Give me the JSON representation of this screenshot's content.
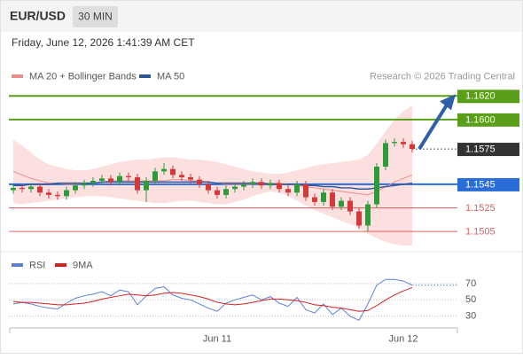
{
  "header": {
    "symbol": "EUR/USD",
    "interval": "30 MIN",
    "timestamp": "Friday, June 12, 2026 1:41:39 AM CET"
  },
  "chart_data": [
    {
      "type": "candlestick",
      "source": "Research © 2026 Trading Central",
      "up_color": "#2e9a3a",
      "down_color": "#d23a3a",
      "open": [
        1.154,
        1.1542,
        1.1541,
        1.1543,
        1.1538,
        1.1536,
        1.1535,
        1.154,
        1.1544,
        1.1546,
        1.1548,
        1.155,
        1.1547,
        1.1552,
        1.1551,
        1.154,
        1.1548,
        1.1556,
        1.1558,
        1.1553,
        1.1551,
        1.1549,
        1.1545,
        1.154,
        1.1536,
        1.1541,
        1.1543,
        1.1545,
        1.1547,
        1.1544,
        1.1546,
        1.1541,
        1.1538,
        1.1545,
        1.1534,
        1.153,
        1.1538,
        1.1526,
        1.1531,
        1.1522,
        1.151,
        1.1528,
        1.156,
        1.158,
        1.1581,
        1.1579
      ],
      "high": [
        1.1545,
        1.1545,
        1.1546,
        1.1546,
        1.1541,
        1.1539,
        1.1543,
        1.1547,
        1.1549,
        1.1551,
        1.1553,
        1.1553,
        1.1555,
        1.1555,
        1.1554,
        1.1551,
        1.1559,
        1.1563,
        1.1561,
        1.1556,
        1.1554,
        1.1552,
        1.1548,
        1.1543,
        1.1544,
        1.1546,
        1.1548,
        1.155,
        1.155,
        1.1549,
        1.1549,
        1.1544,
        1.1548,
        1.1548,
        1.1537,
        1.1541,
        1.1541,
        1.1534,
        1.1534,
        1.1525,
        1.1531,
        1.1563,
        1.1583,
        1.1584,
        1.1584,
        1.1582
      ],
      "low": [
        1.1537,
        1.1538,
        1.1538,
        1.1535,
        1.1533,
        1.1532,
        1.1532,
        1.1537,
        1.1541,
        1.1543,
        1.1545,
        1.1544,
        1.1544,
        1.1548,
        1.1537,
        1.153,
        1.1545,
        1.1553,
        1.155,
        1.1548,
        1.1546,
        1.1542,
        1.1537,
        1.1533,
        1.1533,
        1.1538,
        1.154,
        1.1542,
        1.1541,
        1.1541,
        1.1538,
        1.1535,
        1.1535,
        1.1531,
        1.1527,
        1.1527,
        1.1523,
        1.1523,
        1.1519,
        1.1507,
        1.1505,
        1.1525,
        1.1557,
        1.1577,
        1.1576,
        1.1572
      ],
      "close": [
        1.1542,
        1.1541,
        1.1543,
        1.1538,
        1.1536,
        1.1535,
        1.154,
        1.1544,
        1.1546,
        1.1548,
        1.155,
        1.1547,
        1.1552,
        1.1551,
        1.154,
        1.1548,
        1.1556,
        1.1558,
        1.1553,
        1.1551,
        1.1549,
        1.1545,
        1.154,
        1.1536,
        1.1541,
        1.1543,
        1.1545,
        1.1547,
        1.1544,
        1.1546,
        1.1541,
        1.1538,
        1.1545,
        1.1534,
        1.153,
        1.1538,
        1.1526,
        1.1531,
        1.1522,
        1.151,
        1.1528,
        1.156,
        1.158,
        1.1581,
        1.1579,
        1.1575
      ],
      "series": [
        {
          "name": "MA 20 + Bollinger Bands",
          "color": "#ef8a8a",
          "band_color": "#fbdada",
          "values": [
            1.1556,
            1.1553,
            1.155,
            1.1548,
            1.1546,
            1.1546,
            1.1545,
            1.1545,
            1.1546,
            1.1546,
            1.1547,
            1.1548,
            1.1548,
            1.1548,
            1.1548,
            1.1548,
            1.1548,
            1.1548,
            1.1549,
            1.1549,
            1.1548,
            1.1548,
            1.1547,
            1.1546,
            1.1545,
            1.1545,
            1.1545,
            1.1545,
            1.1546,
            1.1546,
            1.1546,
            1.1545,
            1.1544,
            1.1543,
            1.1542,
            1.1541,
            1.154,
            1.1539,
            1.1538,
            1.1537,
            1.1536,
            1.1539,
            1.1543,
            1.1547,
            1.155,
            1.1553
          ],
          "upper": [
            1.1583,
            1.1578,
            1.1572,
            1.1566,
            1.1562,
            1.156,
            1.1558,
            1.1557,
            1.1557,
            1.1558,
            1.156,
            1.1562,
            1.1564,
            1.1565,
            1.1566,
            1.1566,
            1.1567,
            1.1568,
            1.1568,
            1.1567,
            1.1566,
            1.1566,
            1.1565,
            1.1564,
            1.1562,
            1.156,
            1.1558,
            1.1556,
            1.1555,
            1.1554,
            1.1554,
            1.1555,
            1.1557,
            1.1559,
            1.1561,
            1.1562,
            1.1563,
            1.1564,
            1.1565,
            1.1566,
            1.157,
            1.158,
            1.159,
            1.16,
            1.1607,
            1.1612
          ],
          "lower": [
            1.1529,
            1.1528,
            1.1529,
            1.153,
            1.1531,
            1.1532,
            1.1533,
            1.1534,
            1.1535,
            1.1535,
            1.1535,
            1.1534,
            1.1533,
            1.1532,
            1.1531,
            1.153,
            1.1529,
            1.1529,
            1.153,
            1.1531,
            1.1531,
            1.153,
            1.1529,
            1.1528,
            1.1528,
            1.153,
            1.1532,
            1.1535,
            1.1537,
            1.1539,
            1.1538,
            1.1535,
            1.1531,
            1.1527,
            1.1523,
            1.152,
            1.1517,
            1.1514,
            1.1511,
            1.1508,
            1.1503,
            1.1499,
            1.1496,
            1.1494,
            1.1493,
            1.1493
          ]
        },
        {
          "name": "MA 50",
          "color": "#2f5597",
          "values": [
            1.1544,
            1.1544,
            1.1545,
            1.1545,
            1.1545,
            1.1546,
            1.1546,
            1.1546,
            1.1546,
            1.1546,
            1.1547,
            1.1547,
            1.1547,
            1.1547,
            1.1547,
            1.1547,
            1.1547,
            1.1547,
            1.1547,
            1.1547,
            1.1547,
            1.1547,
            1.1547,
            1.1546,
            1.1546,
            1.1546,
            1.1546,
            1.1546,
            1.1546,
            1.1545,
            1.1545,
            1.1545,
            1.1545,
            1.1544,
            1.1544,
            1.1543,
            1.1543,
            1.1542,
            1.1542,
            1.1541,
            1.1541,
            1.1542,
            1.1543,
            1.1544,
            1.1545,
            1.1546
          ]
        }
      ],
      "ylim": [
        1.149,
        1.163
      ],
      "levels": [
        {
          "value": 1.162,
          "label": "1.1620",
          "color": "#5a9e1a",
          "style": "box"
        },
        {
          "value": 1.16,
          "label": "1.1600",
          "color": "#5a9e1a",
          "style": "box"
        },
        {
          "value": 1.1575,
          "color": "#333333",
          "style": "current"
        },
        {
          "value": 1.1545,
          "color": "#2a6dd6",
          "style": "box"
        },
        {
          "value": 1.1525,
          "color": "#e06060",
          "style": "text"
        },
        {
          "value": 1.1505,
          "color": "#e06060",
          "style": "text"
        }
      ]
    },
    {
      "type": "line",
      "categories": [
        null,
        null,
        null,
        null,
        null,
        null,
        null,
        null,
        null,
        null,
        null,
        null,
        null,
        null,
        null,
        null,
        null,
        null,
        null,
        null,
        null,
        null,
        null,
        "Jun 11",
        null,
        null,
        null,
        null,
        null,
        null,
        null,
        null,
        null,
        null,
        null,
        null,
        null,
        null,
        null,
        null,
        null,
        null,
        null,
        null,
        "Jun 12",
        null
      ],
      "series": [
        {
          "name": "RSI",
          "color": "#5b7fd6",
          "values": [
            45,
            47,
            45,
            42,
            40,
            39,
            46,
            52,
            55,
            57,
            60,
            55,
            62,
            60,
            44,
            55,
            64,
            66,
            56,
            52,
            50,
            45,
            40,
            36,
            46,
            50,
            53,
            56,
            50,
            54,
            46,
            42,
            53,
            38,
            34,
            45,
            32,
            40,
            30,
            25,
            45,
            68,
            75,
            75,
            73,
            68
          ]
        },
        {
          "name": "9MA",
          "color": "#d62020",
          "values": [
            48,
            47,
            47,
            46,
            45,
            44,
            44,
            45,
            46,
            48,
            51,
            53,
            55,
            57,
            56,
            55,
            56,
            58,
            59,
            58,
            56,
            54,
            51,
            47,
            45,
            44,
            45,
            47,
            49,
            51,
            51,
            50,
            49,
            47,
            44,
            43,
            41,
            40,
            38,
            36,
            37,
            43,
            50,
            56,
            61,
            65
          ]
        }
      ],
      "ylim": [
        20,
        85
      ],
      "yticks": [
        30,
        50,
        70
      ]
    }
  ]
}
